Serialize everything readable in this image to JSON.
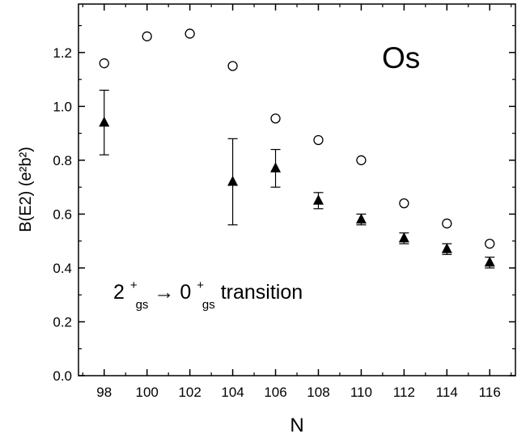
{
  "chart_data": {
    "type": "scatter",
    "xlabel": "N",
    "ylabel": "B(E2) (e²b²)",
    "xlim": [
      96.8,
      117.2
    ],
    "ylim": [
      0.0,
      1.38
    ],
    "xticks": [
      98,
      100,
      102,
      104,
      106,
      108,
      110,
      112,
      114,
      116
    ],
    "yticks": [
      0.0,
      0.2,
      0.4,
      0.6,
      0.8,
      1.0,
      1.2
    ],
    "ytick_labels": [
      "0.0",
      "0.2",
      "0.4",
      "0.6",
      "0.8",
      "1.0",
      "1.2"
    ],
    "grid": false,
    "series": [
      {
        "marker": "open-circle",
        "x": [
          98,
          100,
          102,
          104,
          106,
          108,
          110,
          112,
          114,
          116
        ],
        "y": [
          1.16,
          1.26,
          1.27,
          1.15,
          0.955,
          0.875,
          0.8,
          0.64,
          0.565,
          0.49
        ]
      },
      {
        "marker": "filled-triangle",
        "x": [
          98,
          104,
          106,
          108,
          110,
          112,
          114,
          116
        ],
        "y": [
          0.94,
          0.72,
          0.77,
          0.65,
          0.58,
          0.51,
          0.47,
          0.42
        ],
        "err_low": [
          0.82,
          0.56,
          0.7,
          0.62,
          0.56,
          0.49,
          0.45,
          0.4
        ],
        "err_high": [
          1.06,
          0.88,
          0.84,
          0.68,
          0.6,
          0.53,
          0.49,
          0.44
        ]
      }
    ],
    "annotations": {
      "element": "Os",
      "transition_main": "2",
      "transition_sup1": "+",
      "transition_sub1": "gs",
      "transition_arrow": " → 0",
      "transition_sup2": "+",
      "transition_sub2": "gs",
      "transition_tail": " transition"
    }
  }
}
